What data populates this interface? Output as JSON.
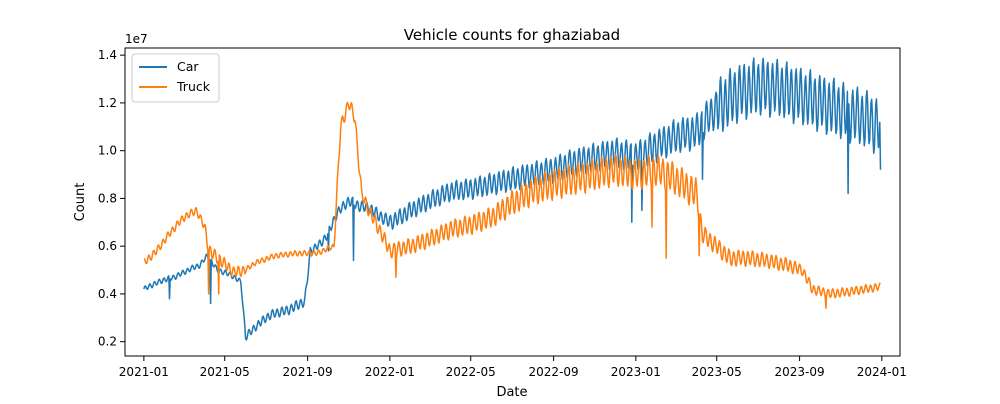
{
  "chart_data": {
    "type": "line",
    "title": "Vehicle counts for ghaziabad",
    "xlabel": "Date",
    "ylabel": "Count",
    "y_offset_label": "1e7",
    "y_scale_multiplier": 10000000,
    "xlim": [
      "2020-12-04",
      "2024-01-28"
    ],
    "ylim": [
      0.14,
      1.43
    ],
    "x_ticks": [
      "2021-01",
      "2021-05",
      "2021-09",
      "2022-01",
      "2022-05",
      "2022-09",
      "2023-01",
      "2023-05",
      "2023-09",
      "2024-01"
    ],
    "y_ticks": [
      "0.2",
      "0.4",
      "0.6",
      "0.8",
      "1.0",
      "1.2",
      "1.4"
    ],
    "legend_position": "upper-left",
    "grid": false,
    "colors": {
      "Car": "#1f77b4",
      "Truck": "#ff7f0e"
    },
    "series": [
      {
        "name": "Car",
        "anchors": [
          [
            "2021-01-01",
            0.42
          ],
          [
            "2021-01-15",
            0.44
          ],
          [
            "2021-02-01",
            0.46
          ],
          [
            "2021-02-15",
            0.47
          ],
          [
            "2021-03-01",
            0.49
          ],
          [
            "2021-03-15",
            0.51
          ],
          [
            "2021-03-25",
            0.52
          ],
          [
            "2021-04-05",
            0.56
          ],
          [
            "2021-04-20",
            0.5
          ],
          [
            "2021-05-10",
            0.48
          ],
          [
            "2021-05-25",
            0.45
          ],
          [
            "2021-06-01",
            0.22
          ],
          [
            "2021-06-15",
            0.26
          ],
          [
            "2021-07-01",
            0.3
          ],
          [
            "2021-07-15",
            0.32
          ],
          [
            "2021-08-01",
            0.33
          ],
          [
            "2021-08-15",
            0.35
          ],
          [
            "2021-08-28",
            0.37
          ],
          [
            "2021-09-05",
            0.58
          ],
          [
            "2021-09-20",
            0.61
          ],
          [
            "2021-10-01",
            0.65
          ],
          [
            "2021-10-15",
            0.74
          ],
          [
            "2021-11-01",
            0.79
          ],
          [
            "2021-11-15",
            0.77
          ],
          [
            "2021-12-01",
            0.76
          ],
          [
            "2021-12-15",
            0.73
          ],
          [
            "2022-01-01",
            0.7
          ],
          [
            "2022-01-15",
            0.72
          ],
          [
            "2022-02-01",
            0.75
          ],
          [
            "2022-03-01",
            0.79
          ],
          [
            "2022-04-01",
            0.83
          ],
          [
            "2022-05-01",
            0.84
          ],
          [
            "2022-06-01",
            0.86
          ],
          [
            "2022-07-01",
            0.88
          ],
          [
            "2022-08-01",
            0.9
          ],
          [
            "2022-09-01",
            0.92
          ],
          [
            "2022-10-01",
            0.95
          ],
          [
            "2022-11-01",
            0.97
          ],
          [
            "2022-12-01",
            0.99
          ],
          [
            "2023-01-01",
            0.97
          ],
          [
            "2023-02-01",
            1.02
          ],
          [
            "2023-03-01",
            1.06
          ],
          [
            "2023-04-01",
            1.08
          ],
          [
            "2023-05-01",
            1.18
          ],
          [
            "2023-06-01",
            1.24
          ],
          [
            "2023-07-01",
            1.27
          ],
          [
            "2023-08-01",
            1.26
          ],
          [
            "2023-09-01",
            1.23
          ],
          [
            "2023-10-01",
            1.2
          ],
          [
            "2023-11-01",
            1.17
          ],
          [
            "2023-12-01",
            1.14
          ],
          [
            "2023-12-30",
            1.1
          ]
        ],
        "amplitude": [
          [
            "2021-01-01",
            0.02
          ],
          [
            "2021-05-31",
            0.02
          ],
          [
            "2021-06-01",
            0.03
          ],
          [
            "2021-08-28",
            0.04
          ],
          [
            "2021-09-05",
            0.03
          ],
          [
            "2021-12-31",
            0.05
          ],
          [
            "2022-01-01",
            0.06
          ],
          [
            "2022-12-31",
            0.12
          ],
          [
            "2023-01-01",
            0.12
          ],
          [
            "2023-04-30",
            0.14
          ],
          [
            "2023-05-01",
            0.22
          ],
          [
            "2023-12-30",
            0.22
          ]
        ],
        "dips": [
          [
            "2021-02-08",
            0.38
          ],
          [
            "2021-04-10",
            0.36
          ],
          [
            "2021-10-02",
            0.58
          ],
          [
            "2021-11-08",
            0.54
          ],
          [
            "2022-12-26",
            0.7
          ],
          [
            "2023-01-10",
            0.75
          ],
          [
            "2023-04-10",
            0.88
          ],
          [
            "2023-11-12",
            0.82
          ],
          [
            "2023-12-30",
            0.92
          ]
        ]
      },
      {
        "name": "Truck",
        "anchors": [
          [
            "2021-01-01",
            0.53
          ],
          [
            "2021-01-20",
            0.58
          ],
          [
            "2021-02-10",
            0.66
          ],
          [
            "2021-03-01",
            0.72
          ],
          [
            "2021-03-20",
            0.75
          ],
          [
            "2021-04-01",
            0.68
          ],
          [
            "2021-04-08",
            0.58
          ],
          [
            "2021-04-25",
            0.54
          ],
          [
            "2021-05-15",
            0.49
          ],
          [
            "2021-06-01",
            0.5
          ],
          [
            "2021-06-15",
            0.53
          ],
          [
            "2021-07-15",
            0.56
          ],
          [
            "2021-08-15",
            0.57
          ],
          [
            "2021-09-15",
            0.57
          ],
          [
            "2021-10-10",
            0.6
          ],
          [
            "2021-10-20",
            1.1
          ],
          [
            "2021-11-01",
            1.2
          ],
          [
            "2021-11-10",
            1.14
          ],
          [
            "2021-11-20",
            0.82
          ],
          [
            "2021-12-01",
            0.75
          ],
          [
            "2021-12-20",
            0.65
          ],
          [
            "2022-01-01",
            0.58
          ],
          [
            "2022-02-01",
            0.6
          ],
          [
            "2022-03-01",
            0.63
          ],
          [
            "2022-04-01",
            0.67
          ],
          [
            "2022-05-01",
            0.69
          ],
          [
            "2022-06-01",
            0.72
          ],
          [
            "2022-07-01",
            0.78
          ],
          [
            "2022-08-01",
            0.83
          ],
          [
            "2022-09-01",
            0.86
          ],
          [
            "2022-10-01",
            0.88
          ],
          [
            "2022-11-01",
            0.9
          ],
          [
            "2022-12-01",
            0.92
          ],
          [
            "2023-01-01",
            0.9
          ],
          [
            "2023-02-01",
            0.92
          ],
          [
            "2023-03-01",
            0.88
          ],
          [
            "2023-04-01",
            0.82
          ],
          [
            "2023-04-10",
            0.65
          ],
          [
            "2023-05-01",
            0.6
          ],
          [
            "2023-05-20",
            0.55
          ],
          [
            "2023-06-15",
            0.55
          ],
          [
            "2023-07-15",
            0.54
          ],
          [
            "2023-08-15",
            0.52
          ],
          [
            "2023-09-05",
            0.5
          ],
          [
            "2023-09-20",
            0.42
          ],
          [
            "2023-10-15",
            0.4
          ],
          [
            "2023-11-15",
            0.41
          ],
          [
            "2023-12-30",
            0.43
          ]
        ],
        "amplitude": [
          [
            "2021-01-01",
            0.03
          ],
          [
            "2021-03-31",
            0.03
          ],
          [
            "2021-04-01",
            0.05
          ],
          [
            "2021-05-31",
            0.04
          ],
          [
            "2021-06-01",
            0.02
          ],
          [
            "2021-10-09",
            0.02
          ],
          [
            "2021-10-10",
            0.05
          ],
          [
            "2021-11-20",
            0.05
          ],
          [
            "2021-12-01",
            0.05
          ],
          [
            "2022-06-01",
            0.08
          ],
          [
            "2022-09-01",
            0.12
          ],
          [
            "2023-03-31",
            0.12
          ],
          [
            "2023-04-01",
            0.07
          ],
          [
            "2023-08-31",
            0.05
          ],
          [
            "2023-09-01",
            0.04
          ],
          [
            "2023-12-30",
            0.03
          ]
        ],
        "dips": [
          [
            "2021-04-07",
            0.4
          ],
          [
            "2021-04-22",
            0.4
          ],
          [
            "2022-01-10",
            0.47
          ],
          [
            "2023-01-25",
            0.68
          ],
          [
            "2023-02-15",
            0.55
          ],
          [
            "2023-04-05",
            0.56
          ],
          [
            "2023-10-10",
            0.34
          ]
        ]
      }
    ]
  }
}
